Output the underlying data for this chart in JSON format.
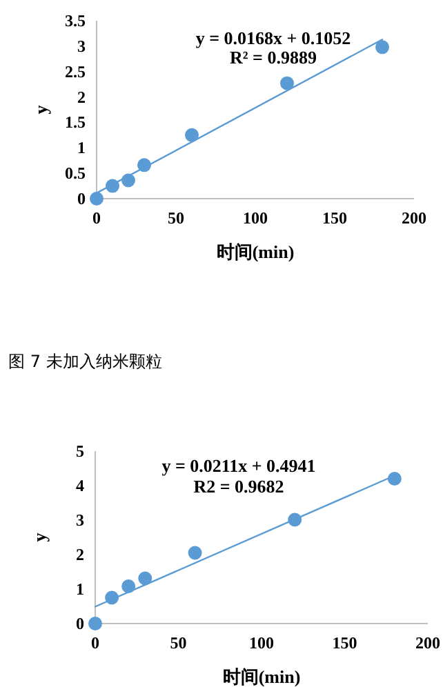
{
  "chart_data": [
    {
      "type": "scatter",
      "xlabel": "时间(min)",
      "ylabel": "y",
      "xlim": [
        0,
        200
      ],
      "xticks": [
        0,
        50,
        100,
        150,
        200
      ],
      "ylim": [
        0,
        3.5
      ],
      "yticks": [
        0,
        0.5,
        1,
        1.5,
        2,
        2.5,
        3,
        3.5
      ],
      "series": [
        {
          "color": "#5b9bd5",
          "marker": "circle",
          "x": [
            0,
            10,
            20,
            30,
            60,
            120,
            180
          ],
          "values": [
            0,
            0.25,
            0.36,
            0.66,
            1.25,
            2.27,
            2.98
          ]
        },
        {
          "type": "line",
          "color": "#5b9bd5",
          "x": [
            0,
            180
          ],
          "values": [
            0.11,
            3.13
          ]
        }
      ],
      "annotations": [
        "y = 0.0168x + 0.1052",
        "R² = 0.9889",
        "图 7 未加入纳米颗粒"
      ]
    },
    {
      "type": "scatter",
      "xlabel": "时间(min)",
      "ylabel": "y",
      "xlim": [
        0,
        200
      ],
      "xticks": [
        0,
        50,
        100,
        150,
        200
      ],
      "ylim": [
        0,
        5
      ],
      "yticks": [
        0,
        1,
        2,
        3,
        4,
        5
      ],
      "series": [
        {
          "color": "#5b9bd5",
          "marker": "circle",
          "x": [
            0,
            10,
            20,
            30,
            60,
            120,
            180
          ],
          "values": [
            0,
            0.75,
            1.08,
            1.31,
            2.05,
            3.01,
            4.2
          ]
        },
        {
          "type": "line",
          "color": "#5b9bd5",
          "x": [
            0,
            180
          ],
          "values": [
            0.49,
            4.29
          ]
        }
      ],
      "annotations": [
        "y = 0.0211x + 0.4941",
        "R2 = 0.9682"
      ]
    }
  ]
}
